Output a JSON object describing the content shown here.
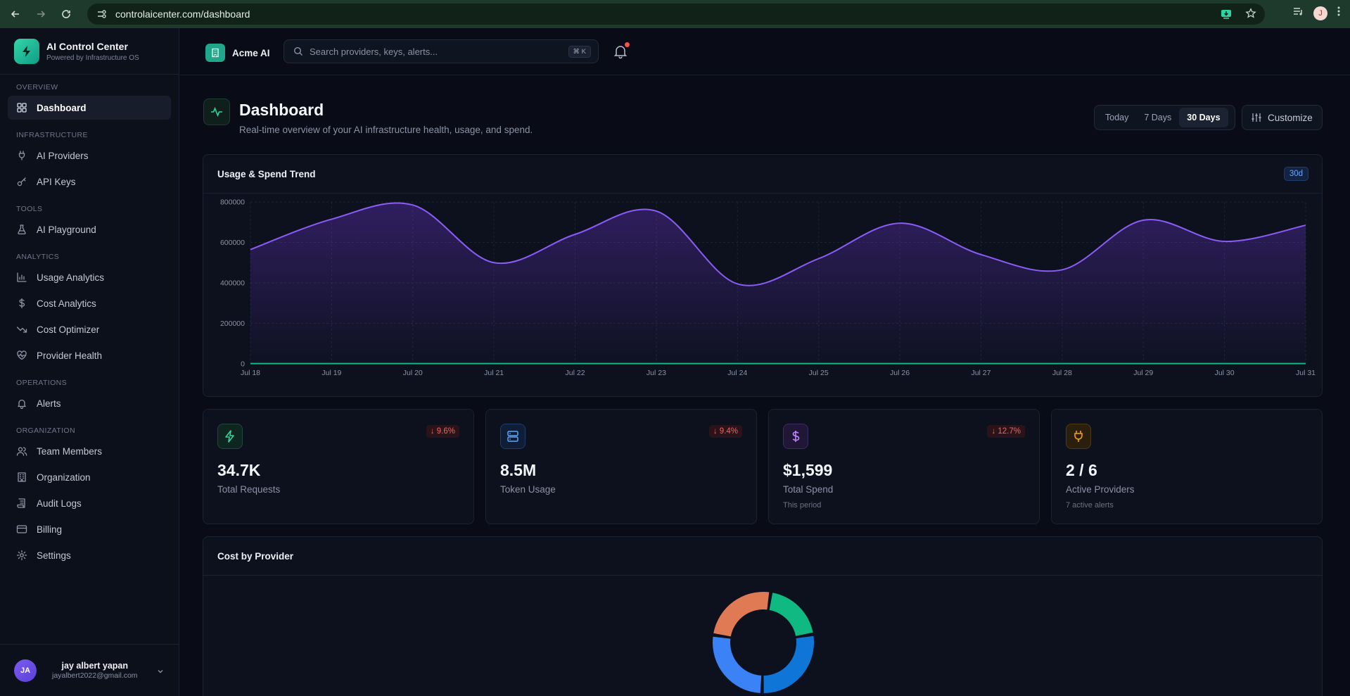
{
  "browser": {
    "url": "controlaicenter.com/dashboard",
    "profile_initial": "J"
  },
  "sidebar": {
    "brand_title": "AI Control Center",
    "brand_subtitle": "Powered by Infrastructure OS",
    "sections": [
      {
        "label": "OVERVIEW",
        "items": [
          {
            "label": "Dashboard",
            "icon": "grid-icon",
            "active": true
          }
        ]
      },
      {
        "label": "INFRASTRUCTURE",
        "items": [
          {
            "label": "AI Providers",
            "icon": "plug-icon"
          },
          {
            "label": "API Keys",
            "icon": "key-icon"
          }
        ]
      },
      {
        "label": "TOOLS",
        "items": [
          {
            "label": "AI Playground",
            "icon": "flask-icon"
          }
        ]
      },
      {
        "label": "ANALYTICS",
        "items": [
          {
            "label": "Usage Analytics",
            "icon": "bar-chart-icon"
          },
          {
            "label": "Cost Analytics",
            "icon": "dollar-icon"
          },
          {
            "label": "Cost Optimizer",
            "icon": "trend-down-icon"
          },
          {
            "label": "Provider Health",
            "icon": "heart-pulse-icon"
          }
        ]
      },
      {
        "label": "OPERATIONS",
        "items": [
          {
            "label": "Alerts",
            "icon": "bell-icon"
          }
        ]
      },
      {
        "label": "ORGANIZATION",
        "items": [
          {
            "label": "Team Members",
            "icon": "users-icon"
          },
          {
            "label": "Organization",
            "icon": "building-icon"
          },
          {
            "label": "Audit Logs",
            "icon": "scroll-icon"
          },
          {
            "label": "Billing",
            "icon": "credit-card-icon"
          },
          {
            "label": "Settings",
            "icon": "gear-icon"
          }
        ]
      }
    ],
    "user": {
      "initials": "JA",
      "name": "jay albert yapan",
      "email": "jayalbert2022@gmail.com"
    }
  },
  "topbar": {
    "org_name": "Acme AI",
    "search_placeholder": "Search providers, keys, alerts...",
    "search_shortcut": "⌘ K"
  },
  "page": {
    "title": "Dashboard",
    "subtitle": "Real-time overview of your AI infrastructure health, usage, and spend.",
    "range_options": [
      "Today",
      "7 Days",
      "30 Days"
    ],
    "range_selected": "30 Days",
    "customize_label": "Customize"
  },
  "trend_card": {
    "title": "Usage & Spend Trend",
    "badge": "30d"
  },
  "chart_data": {
    "type": "area",
    "x": [
      "Jul 18",
      "Jul 19",
      "Jul 20",
      "Jul 21",
      "Jul 22",
      "Jul 23",
      "Jul 24",
      "Jul 25",
      "Jul 26",
      "Jul 27",
      "Jul 28",
      "Jul 29",
      "Jul 30",
      "Jul 31"
    ],
    "series": [
      {
        "color": "#8b5cf6",
        "values": [
          565000,
          715000,
          785000,
          500000,
          640000,
          755000,
          395000,
          520000,
          695000,
          540000,
          465000,
          710000,
          605000,
          685000
        ]
      },
      {
        "color": "#10b981",
        "values": [
          1500,
          1500,
          1500,
          1500,
          1500,
          1500,
          1500,
          1500,
          1500,
          1500,
          1500,
          1500,
          1500,
          1500
        ]
      }
    ],
    "yticks": [
      0,
      200000,
      400000,
      600000,
      800000
    ],
    "ylim": [
      0,
      800000
    ],
    "grid": true,
    "title": "",
    "xlabel": "",
    "ylabel": ""
  },
  "stats": [
    {
      "value": "34.7K",
      "label": "Total Requests",
      "delta": "↓ 9.6%",
      "sub": "",
      "icon": "zap-icon",
      "color": "#34d399"
    },
    {
      "value": "8.5M",
      "label": "Token Usage",
      "delta": "↓ 9.4%",
      "sub": "",
      "icon": "server-icon",
      "color": "#60a5fa"
    },
    {
      "value": "$1,599",
      "label": "Total Spend",
      "delta": "↓ 12.7%",
      "sub": "This period",
      "icon": "dollar-icon",
      "color": "#c084fc"
    },
    {
      "value": "2 / 6",
      "label": "Active Providers",
      "delta": "",
      "sub": "7 active alerts",
      "icon": "plug-icon",
      "color": "#f59e0b"
    }
  ],
  "cost_card": {
    "title": "Cost by Provider",
    "donut": [
      {
        "color": "#10b981",
        "share": 0.2
      },
      {
        "color": "#0f76d8",
        "share": 0.28
      },
      {
        "color": "#3b82f6",
        "share": 0.27
      },
      {
        "color": "#e07a55",
        "share": 0.25
      }
    ]
  }
}
